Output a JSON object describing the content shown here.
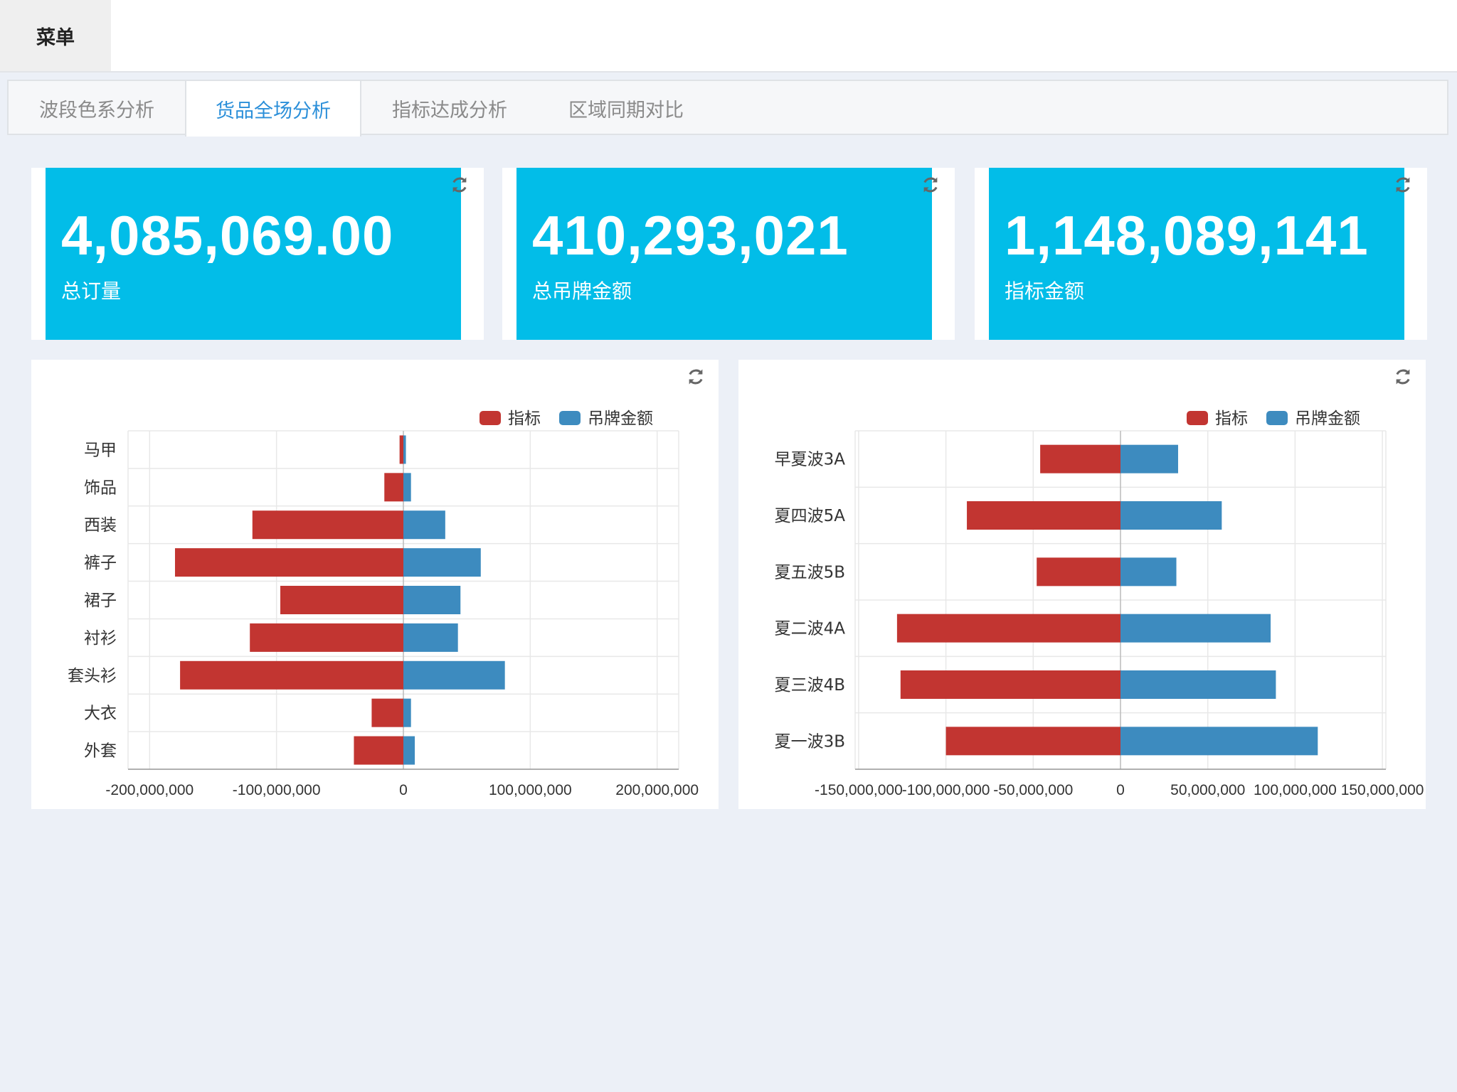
{
  "header": {
    "menu_label": "菜单"
  },
  "tabs": [
    {
      "label": "波段色系分析",
      "active": false
    },
    {
      "label": "货品全场分析",
      "active": true
    },
    {
      "label": "指标达成分析",
      "active": false
    },
    {
      "label": "区域同期对比",
      "active": false
    }
  ],
  "kpis": [
    {
      "value": "4,085,069.00",
      "label": "总订量"
    },
    {
      "value": "410,293,021",
      "label": "总吊牌金额"
    },
    {
      "value": "1,148,089,141",
      "label": "指标金额"
    }
  ],
  "colors": {
    "accent": "#02bde8",
    "target": "#c23531",
    "tag_amount": "#3d8bbf",
    "tab_active": "#2b8fd9"
  },
  "icons": {
    "refresh": "refresh-icon"
  },
  "chart_data": [
    {
      "type": "bar",
      "orientation": "horizontal",
      "legend_position": "top-right",
      "categories": [
        "马甲",
        "饰品",
        "西装",
        "裤子",
        "裙子",
        "衬衫",
        "套头衫",
        "大衣",
        "外套"
      ],
      "series": [
        {
          "name": "指标",
          "color": "#c23531",
          "values": [
            -3000000,
            -15000000,
            -119000000,
            -180000000,
            -97000000,
            -121000000,
            -176000000,
            -25000000,
            -39000000
          ]
        },
        {
          "name": "吊牌金额",
          "color": "#3d8bbf",
          "values": [
            2000000,
            6000000,
            33000000,
            61000000,
            45000000,
            43000000,
            80000000,
            6000000,
            9000000
          ]
        }
      ],
      "xlim": [
        -217000000,
        217000000
      ],
      "x_ticks": [
        -200000000,
        -100000000,
        0,
        100000000,
        200000000
      ],
      "x_tick_labels": [
        "-200,000,000",
        "-100,000,000",
        "0",
        "100,000,000",
        "200,000,000"
      ],
      "grid": true
    },
    {
      "type": "bar",
      "orientation": "horizontal",
      "legend_position": "top-right",
      "categories": [
        "早夏波3A",
        "夏四波5A",
        "夏五波5B",
        "夏二波4A",
        "夏三波4B",
        "夏一波3B"
      ],
      "series": [
        {
          "name": "指标",
          "color": "#c23531",
          "values": [
            -46000000,
            -88000000,
            -48000000,
            -128000000,
            -126000000,
            -100000000
          ]
        },
        {
          "name": "吊牌金额",
          "color": "#3d8bbf",
          "values": [
            33000000,
            58000000,
            32000000,
            86000000,
            89000000,
            113000000
          ]
        }
      ],
      "xlim": [
        -152000000,
        152000000
      ],
      "x_ticks": [
        -150000000,
        -100000000,
        -50000000,
        0,
        50000000,
        100000000,
        150000000
      ],
      "x_tick_labels": [
        "-150,000,000",
        "-100,000,000",
        "-50,000,000",
        "0",
        "50,000,000",
        "100,000,000",
        "150,000,000"
      ],
      "grid": true
    }
  ]
}
